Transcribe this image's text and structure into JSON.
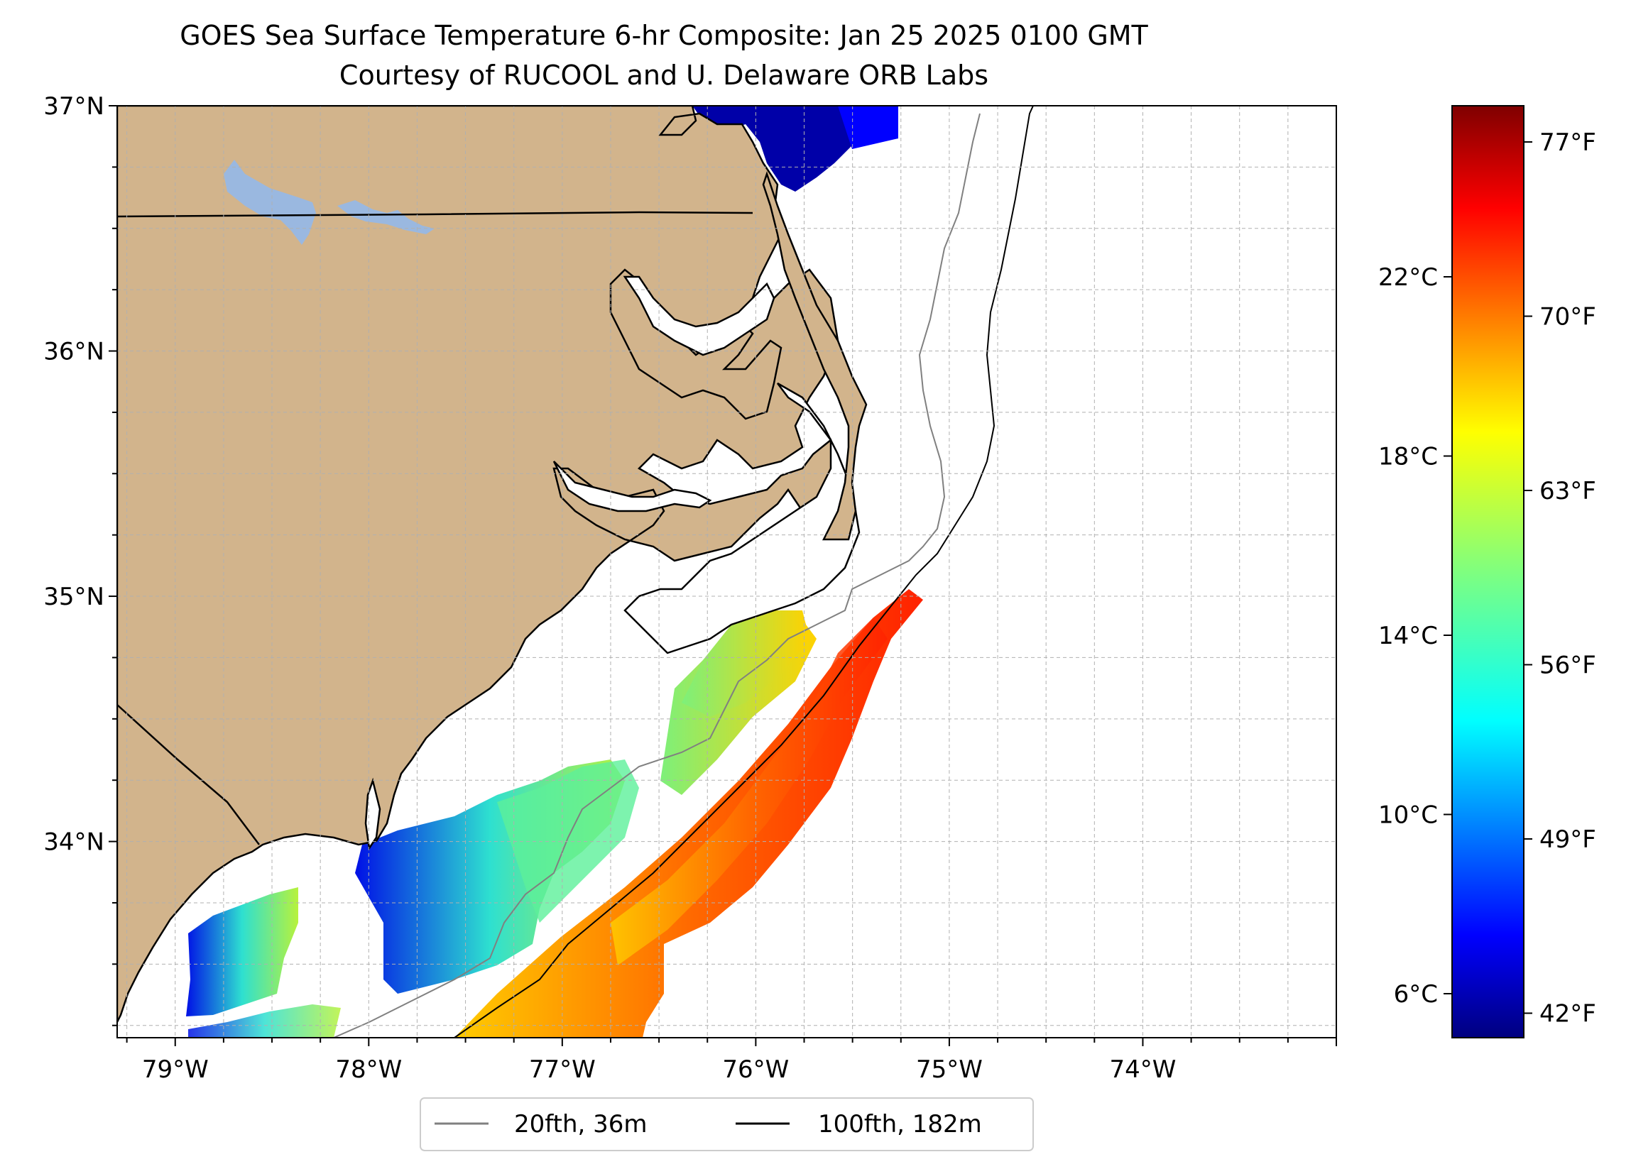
{
  "title": {
    "line1": "GOES Sea Surface Temperature 6-hr Composite: Jan 25 2025 0100 GMT",
    "line2": "Courtesy of RUCOOL and U. Delaware ORB Labs"
  },
  "map": {
    "lon_range": [
      -79.3,
      -73.0
    ],
    "lat_range": [
      33.2,
      37.0
    ],
    "lon_ticks": [
      {
        "value": -79,
        "label": "79°W"
      },
      {
        "value": -78,
        "label": "78°W"
      },
      {
        "value": -77,
        "label": "77°W"
      },
      {
        "value": -76,
        "label": "76°W"
      },
      {
        "value": -75,
        "label": "75°W"
      },
      {
        "value": -74,
        "label": "74°W"
      }
    ],
    "lat_ticks": [
      {
        "value": 37,
        "label": "37°N"
      },
      {
        "value": 36,
        "label": "36°N"
      },
      {
        "value": 35,
        "label": "35°N"
      },
      {
        "value": 34,
        "label": "34°N"
      }
    ],
    "grid": true,
    "land_color": "#d2b48c",
    "water_color": "#9ab8e0"
  },
  "colorbar": {
    "colormap": "jet",
    "celsius_ticks": [
      "22°C",
      "18°C",
      "14°C",
      "10°C",
      "6°C"
    ],
    "fahrenheit_ticks": [
      "77°F",
      "70°F",
      "63°F",
      "56°F",
      "49°F",
      "42°F"
    ]
  },
  "legend": {
    "entries": [
      {
        "label": "20fth, 36m",
        "color": "#808080"
      },
      {
        "label": "100fth, 182m",
        "color": "#000000"
      }
    ],
    "placement": "bottom-center"
  }
}
